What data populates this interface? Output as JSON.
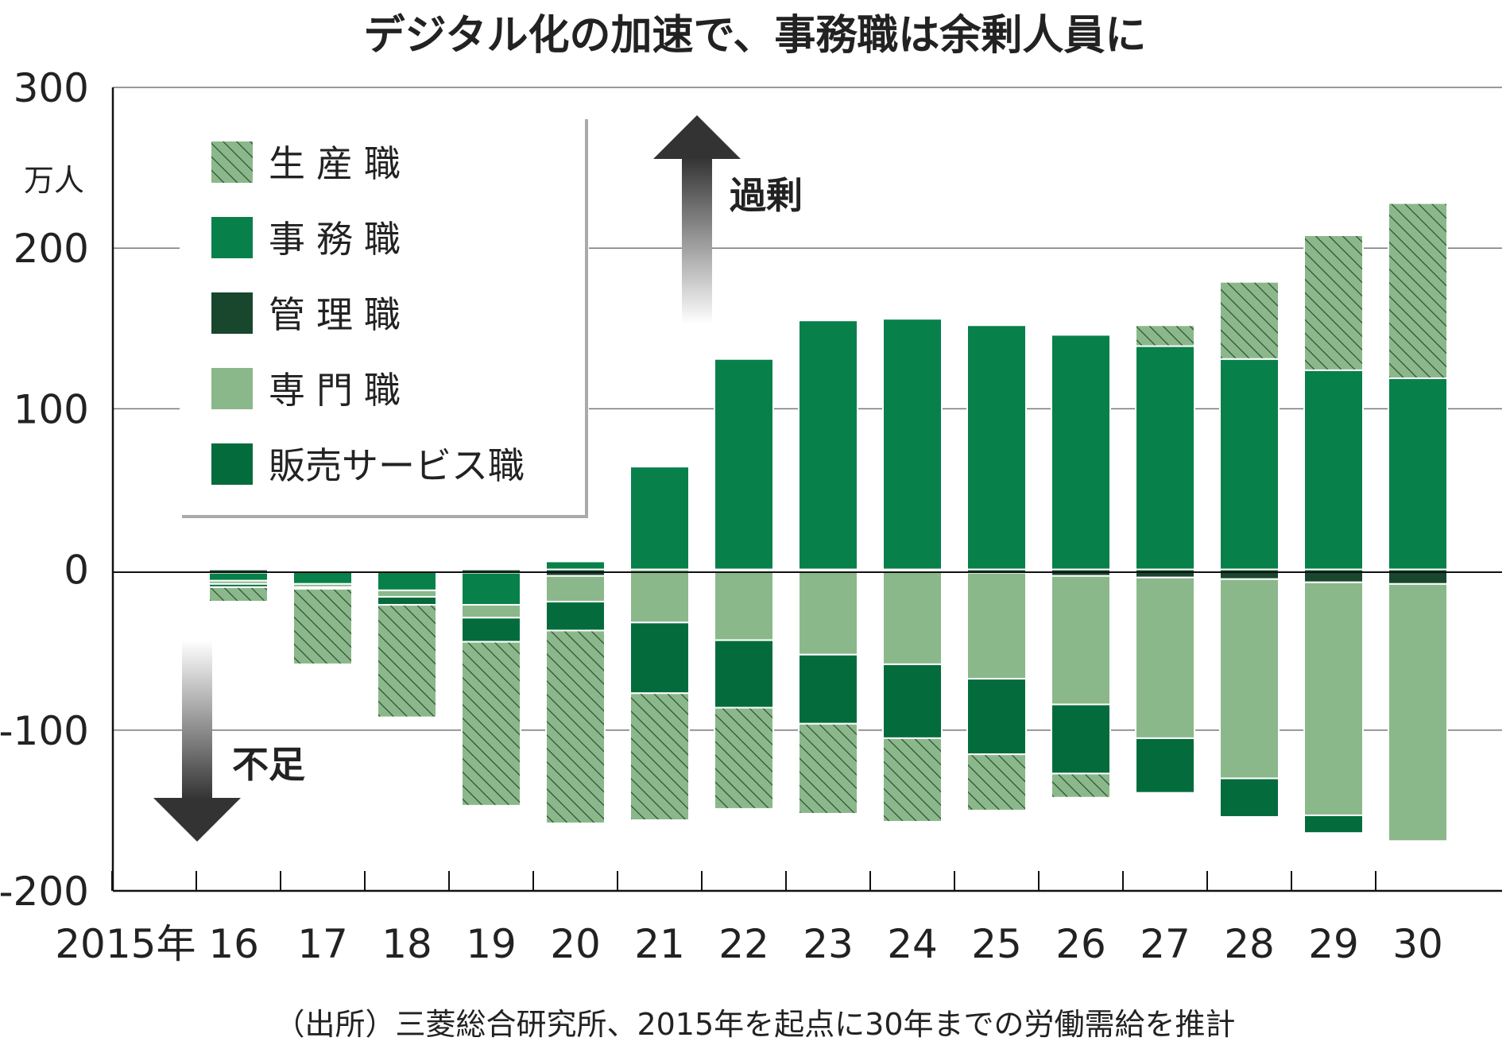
{
  "chart_data": {
    "type": "bar",
    "stacked": true,
    "title": "デジタル化の加速で、事務職は余剰人員に",
    "unit_label": "万人",
    "source_note": "（出所）三菱総合研究所、2015年を起点に30年までの労働需給を推計",
    "annotations": {
      "surplus": "過剰",
      "shortage": "不足"
    },
    "categories": [
      "2015年 16",
      "17",
      "18",
      "19",
      "20",
      "21",
      "22",
      "23",
      "24",
      "25",
      "26",
      "27",
      "28",
      "29",
      "30"
    ],
    "ylim": [
      -200,
      300
    ],
    "yticks": [
      300,
      200,
      100,
      0,
      -100,
      -200
    ],
    "grid": true,
    "legend_position": "top-left",
    "stack_order_positive": [
      "管理職",
      "事務職",
      "生産職"
    ],
    "stack_order_negative": [
      "管理職",
      "事務職",
      "専門職",
      "販売サービス職",
      "生産職"
    ],
    "series": [
      {
        "name": "生産職",
        "color": "#8ab88a",
        "pattern": "hatch",
        "values": [
          -9,
          -47,
          -70,
          -102,
          -120,
          -79,
          -63,
          -56,
          -52,
          -35,
          -15,
          13,
          48,
          84,
          109
        ]
      },
      {
        "name": "事務職",
        "color": "#08804a",
        "pattern": "solid",
        "values": [
          -5,
          -8,
          -12,
          -20,
          5,
          64,
          131,
          155,
          156,
          152,
          146,
          139,
          131,
          124,
          119
        ]
      },
      {
        "name": "管理職",
        "color": "#18472d",
        "pattern": "solid",
        "values": [
          -2,
          -1,
          -1,
          -2,
          -4,
          0,
          -1,
          -1,
          -1,
          -2,
          -4,
          -5,
          -6,
          -8,
          -9
        ]
      },
      {
        "name": "専門職",
        "color": "#8ab88a",
        "pattern": "solid",
        "values": [
          -2,
          -2,
          -4,
          -8,
          -16,
          -33,
          -43,
          -52,
          -58,
          -66,
          -80,
          -100,
          -124,
          -145,
          -160
        ]
      },
      {
        "name": "販売サービス職",
        "color": "#046c3c",
        "pattern": "solid",
        "values": [
          -2,
          -1,
          -5,
          -15,
          -18,
          -44,
          -42,
          -43,
          -46,
          -47,
          -43,
          -34,
          -24,
          -11,
          0
        ]
      }
    ]
  }
}
